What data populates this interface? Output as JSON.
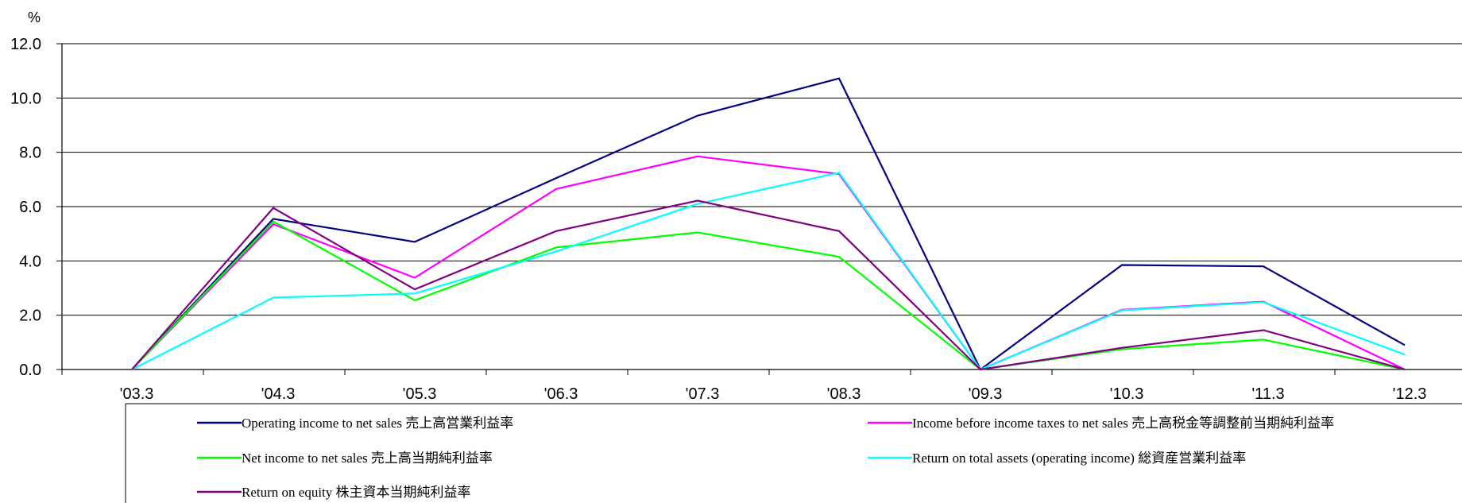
{
  "chart_data": {
    "type": "line",
    "unit_label": "%",
    "categories": [
      "'03.3",
      "'04.3",
      "'05.3",
      "'06.3",
      "'07.3",
      "'08.3",
      "'09.3",
      "'10.3",
      "'11.3",
      "'12.3"
    ],
    "ylim": [
      0,
      12
    ],
    "yticks": [
      "0.0",
      "2.0",
      "4.0",
      "6.0",
      "8.0",
      "10.0",
      "12.0"
    ],
    "grid": true,
    "legend_position": "bottom",
    "series": [
      {
        "name": "Operating income to net sales 売上高営業利益率",
        "color": "#000080",
        "values": [
          0.0,
          5.55,
          4.7,
          7.05,
          9.35,
          10.72,
          0.0,
          3.85,
          3.8,
          0.9
        ]
      },
      {
        "name": "Income before income taxes to net sales 売上高税金等調整前当期純利益率",
        "color": "#ff00ff",
        "values": [
          0.0,
          5.35,
          3.38,
          6.65,
          7.85,
          7.2,
          0.0,
          2.2,
          2.5,
          0.0
        ]
      },
      {
        "name": "Net income to net sales 売上高当期純利益率",
        "color": "#00ff00",
        "values": [
          0.0,
          5.45,
          2.55,
          4.5,
          5.05,
          4.15,
          0.0,
          0.75,
          1.1,
          0.0
        ]
      },
      {
        "name": "Return on total assets (operating income) 総資産営業利益率",
        "color": "#00ffff",
        "values": [
          0.0,
          2.65,
          2.8,
          4.35,
          6.1,
          7.25,
          0.0,
          2.18,
          2.48,
          0.55
        ]
      },
      {
        "name": "Return on equity 株主資本当期純利益率",
        "color": "#800080",
        "values": [
          0.0,
          5.95,
          2.95,
          5.1,
          6.22,
          5.1,
          0.0,
          0.8,
          1.45,
          0.0
        ]
      }
    ]
  }
}
